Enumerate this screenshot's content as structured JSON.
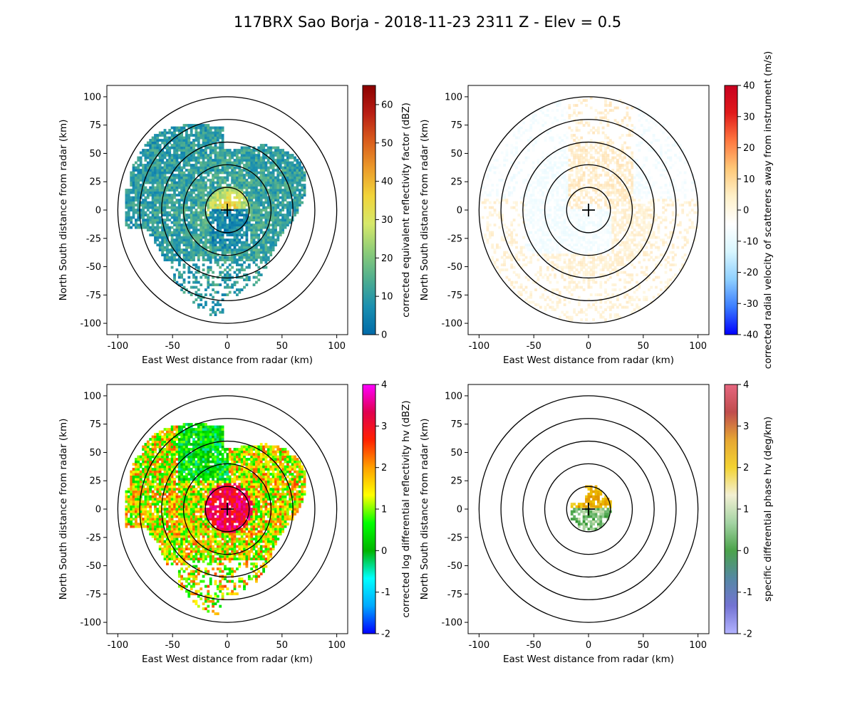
{
  "figure": {
    "title": "117BRX Sao Borja - 2018-11-23 2311 Z -  Elev = 0.5"
  },
  "chart_data": [
    {
      "type": "heatmap",
      "panel": "top-left",
      "xlabel": "East West distance from radar (km)",
      "ylabel": "North South distance from radar (km)",
      "xlim": [
        -110,
        110
      ],
      "ylim": [
        -110,
        110
      ],
      "xticks": [
        -100,
        -50,
        0,
        50,
        100
      ],
      "yticks": [
        -100,
        -75,
        -50,
        -25,
        0,
        25,
        50,
        75,
        100
      ],
      "range_rings_km": [
        20,
        40,
        60,
        80,
        100
      ],
      "colorbar": {
        "label": "corrected equivalent reflectivity factor (dBZ)",
        "range": [
          0,
          65
        ],
        "ticks": [
          0,
          10,
          20,
          30,
          40,
          50,
          60
        ],
        "colormap": [
          "#006aa8",
          "#1a8fb0",
          "#4fae8f",
          "#8ccc78",
          "#d6e86a",
          "#f1d43a",
          "#eb9b2a",
          "#d95c1c",
          "#b81e14",
          "#8b0000"
        ]
      },
      "echo_region": {
        "coverage_km": 95,
        "center_max_dbz": 38,
        "outer_typical_dbz": 10
      }
    },
    {
      "type": "heatmap",
      "panel": "top-right",
      "xlabel": "East West distance from radar (km)",
      "ylabel": "North South distance from radar (km)",
      "xlim": [
        -110,
        110
      ],
      "ylim": [
        -110,
        110
      ],
      "xticks": [
        -100,
        -50,
        0,
        50,
        100
      ],
      "yticks": [
        -100,
        -75,
        -50,
        -25,
        0,
        25,
        50,
        75,
        100
      ],
      "range_rings_km": [
        20,
        40,
        60,
        80,
        100
      ],
      "colorbar": {
        "label": "corrected radial velocity of scatterers away from instrument (m/s)",
        "range": [
          -40,
          40
        ],
        "ticks": [
          -40,
          -30,
          -20,
          -10,
          0,
          10,
          20,
          30,
          40
        ],
        "colormap": [
          "#0000ff",
          "#3a7cff",
          "#8fd0ff",
          "#d8f6ff",
          "#ffffff",
          "#fff0c8",
          "#ffc878",
          "#ff7840",
          "#e01a1a",
          "#c80020"
        ]
      },
      "echo_region": {
        "coverage_km": 100,
        "typical_velocity_ms": 6
      }
    },
    {
      "type": "heatmap",
      "panel": "bottom-left",
      "xlabel": "East West distance from radar (km)",
      "ylabel": "North South distance from radar (km)",
      "xlim": [
        -110,
        110
      ],
      "ylim": [
        -110,
        110
      ],
      "xticks": [
        -100,
        -50,
        0,
        50,
        100
      ],
      "yticks": [
        -100,
        -75,
        -50,
        -25,
        0,
        25,
        50,
        75,
        100
      ],
      "range_rings_km": [
        20,
        40,
        60,
        80,
        100
      ],
      "colorbar": {
        "label": "corrected log differential reflectivity hv (dBZ)",
        "range": [
          -2,
          4
        ],
        "ticks": [
          -2,
          -1,
          0,
          1,
          2,
          3,
          4
        ],
        "colormap": [
          "#0000ff",
          "#00a8ff",
          "#00ffff",
          "#00b400",
          "#00ff00",
          "#ffff00",
          "#ffa000",
          "#ff2000",
          "#e00050",
          "#ff00ff"
        ]
      },
      "echo_region": {
        "coverage_km": 95,
        "center_max_db": 3.6,
        "outer_typical_db": 1.2
      }
    },
    {
      "type": "heatmap",
      "panel": "bottom-right",
      "xlabel": "East West distance from radar (km)",
      "ylabel": "North South distance from radar (km)",
      "xlim": [
        -110,
        110
      ],
      "ylim": [
        -110,
        110
      ],
      "xticks": [
        -100,
        -50,
        0,
        50,
        100
      ],
      "yticks": [
        -100,
        -75,
        -50,
        -25,
        0,
        25,
        50,
        75,
        100
      ],
      "range_rings_km": [
        20,
        40,
        60,
        80,
        100
      ],
      "colorbar": {
        "label": "specific differential phase hv (deg/km)",
        "range": [
          -2,
          4
        ],
        "ticks": [
          -2,
          -1,
          0,
          1,
          2,
          3,
          4
        ],
        "colormap": [
          "#a0a0ff",
          "#5050c8",
          "#2a6a8c",
          "#1e8c1e",
          "#8cc88c",
          "#f0ecc8",
          "#f0c800",
          "#e09000",
          "#b02020",
          "#e04060"
        ]
      },
      "echo_region": {
        "coverage_km": 20,
        "typical_deg_km": 1.8
      }
    }
  ]
}
